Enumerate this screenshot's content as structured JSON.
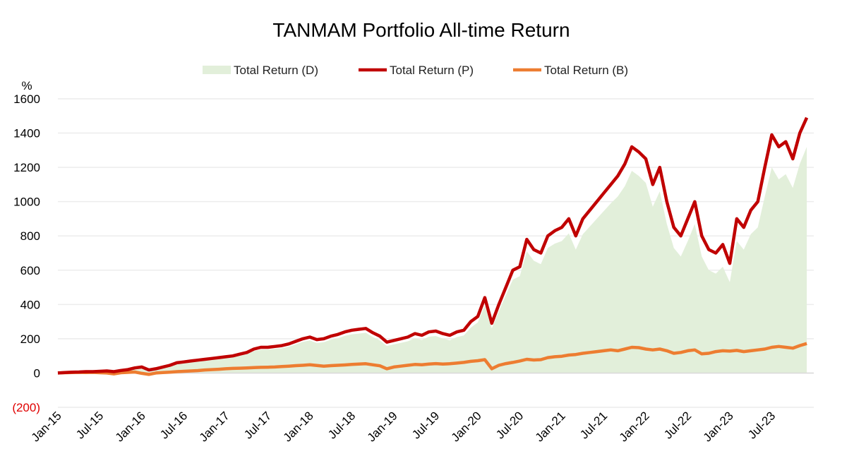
{
  "chart_data": {
    "type": "line",
    "title": "TANMAM Portfolio All-time Return",
    "ylabel": "%",
    "xlabel": "",
    "ylim": [
      -200,
      1600
    ],
    "yticks": [
      1600,
      1400,
      1200,
      1000,
      800,
      600,
      400,
      200,
      0,
      -200
    ],
    "ytick_labels": [
      "1600",
      "1400",
      "1200",
      "1000",
      "800",
      "600",
      "400",
      "200",
      "0",
      "(200)"
    ],
    "xtick_labels": [
      "Jan-15",
      "Jul-15",
      "Jan-16",
      "Jul-16",
      "Jan-17",
      "Jul-17",
      "Jan-18",
      "Jul-18",
      "Jan-19",
      "Jul-19",
      "Jan-20",
      "Jul-20",
      "Jan-21",
      "Jul-21",
      "Jan-22",
      "Jul-22",
      "Jan-23",
      "Jul-23"
    ],
    "x_start": "Jan-15",
    "x_step": "1 month",
    "grid": true,
    "legend_position": "top-center",
    "colors": {
      "D": "#e2efda",
      "P": "#c00000",
      "B": "#ed7d31",
      "grid": "#ececec",
      "negative_tick": "#e00000"
    },
    "series": [
      {
        "key": "D",
        "name": "Total Return (D)",
        "kind": "area",
        "values": [
          0,
          2,
          4,
          5,
          7,
          7,
          9,
          10,
          6,
          13,
          18,
          27,
          32,
          15,
          22,
          32,
          42,
          56,
          61,
          66,
          70,
          75,
          80,
          84,
          88,
          92,
          100,
          110,
          128,
          137,
          137,
          141,
          145,
          154,
          168,
          182,
          190,
          175,
          180,
          194,
          203,
          217,
          226,
          230,
          235,
          210,
          190,
          158,
          167,
          176,
          185,
          203,
          193,
          212,
          216,
          201,
          191,
          210,
          219,
          265,
          295,
          395,
          260,
          360,
          455,
          545,
          565,
          710,
          655,
          635,
          730,
          755,
          770,
          815,
          720,
          810,
          855,
          900,
          945,
          990,
          1030,
          1090,
          1180,
          1150,
          1110,
          970,
          1060,
          870,
          730,
          680,
          770,
          870,
          680,
          600,
          580,
          620,
          530,
          770,
          720,
          810,
          850,
          1030,
          1200,
          1130,
          1160,
          1080,
          1220,
          1320
        ]
      },
      {
        "key": "P",
        "name": "Total Return (P)",
        "kind": "line",
        "values": [
          0,
          3,
          5,
          6,
          8,
          8,
          10,
          12,
          8,
          15,
          20,
          30,
          35,
          18,
          25,
          35,
          45,
          60,
          65,
          70,
          75,
          80,
          85,
          90,
          95,
          100,
          110,
          120,
          140,
          150,
          150,
          155,
          160,
          170,
          185,
          200,
          210,
          195,
          200,
          215,
          225,
          240,
          250,
          255,
          260,
          235,
          215,
          180,
          190,
          200,
          210,
          230,
          220,
          240,
          245,
          230,
          220,
          240,
          250,
          300,
          330,
          440,
          290,
          400,
          500,
          600,
          620,
          780,
          720,
          700,
          800,
          830,
          850,
          900,
          800,
          900,
          950,
          1000,
          1050,
          1100,
          1150,
          1220,
          1320,
          1290,
          1250,
          1100,
          1200,
          1000,
          850,
          800,
          900,
          1000,
          800,
          720,
          700,
          750,
          640,
          900,
          850,
          950,
          1000,
          1200,
          1390,
          1320,
          1350,
          1250,
          1400,
          1490
        ]
      },
      {
        "key": "B",
        "name": "Total Return (B)",
        "kind": "line",
        "values": [
          0,
          2,
          3,
          4,
          3,
          4,
          2,
          0,
          -5,
          2,
          4,
          6,
          -2,
          -8,
          0,
          3,
          5,
          8,
          10,
          12,
          14,
          18,
          20,
          22,
          25,
          27,
          28,
          30,
          32,
          33,
          34,
          35,
          38,
          40,
          43,
          45,
          48,
          44,
          40,
          43,
          45,
          47,
          50,
          52,
          54,
          48,
          42,
          25,
          35,
          40,
          45,
          50,
          48,
          52,
          55,
          52,
          54,
          58,
          62,
          68,
          72,
          78,
          25,
          45,
          55,
          62,
          70,
          80,
          76,
          78,
          90,
          95,
          98,
          105,
          108,
          115,
          120,
          125,
          130,
          135,
          130,
          140,
          150,
          148,
          140,
          135,
          140,
          130,
          115,
          120,
          130,
          135,
          112,
          115,
          125,
          130,
          128,
          132,
          125,
          130,
          135,
          140,
          150,
          155,
          150,
          145,
          160,
          172
        ]
      }
    ]
  }
}
